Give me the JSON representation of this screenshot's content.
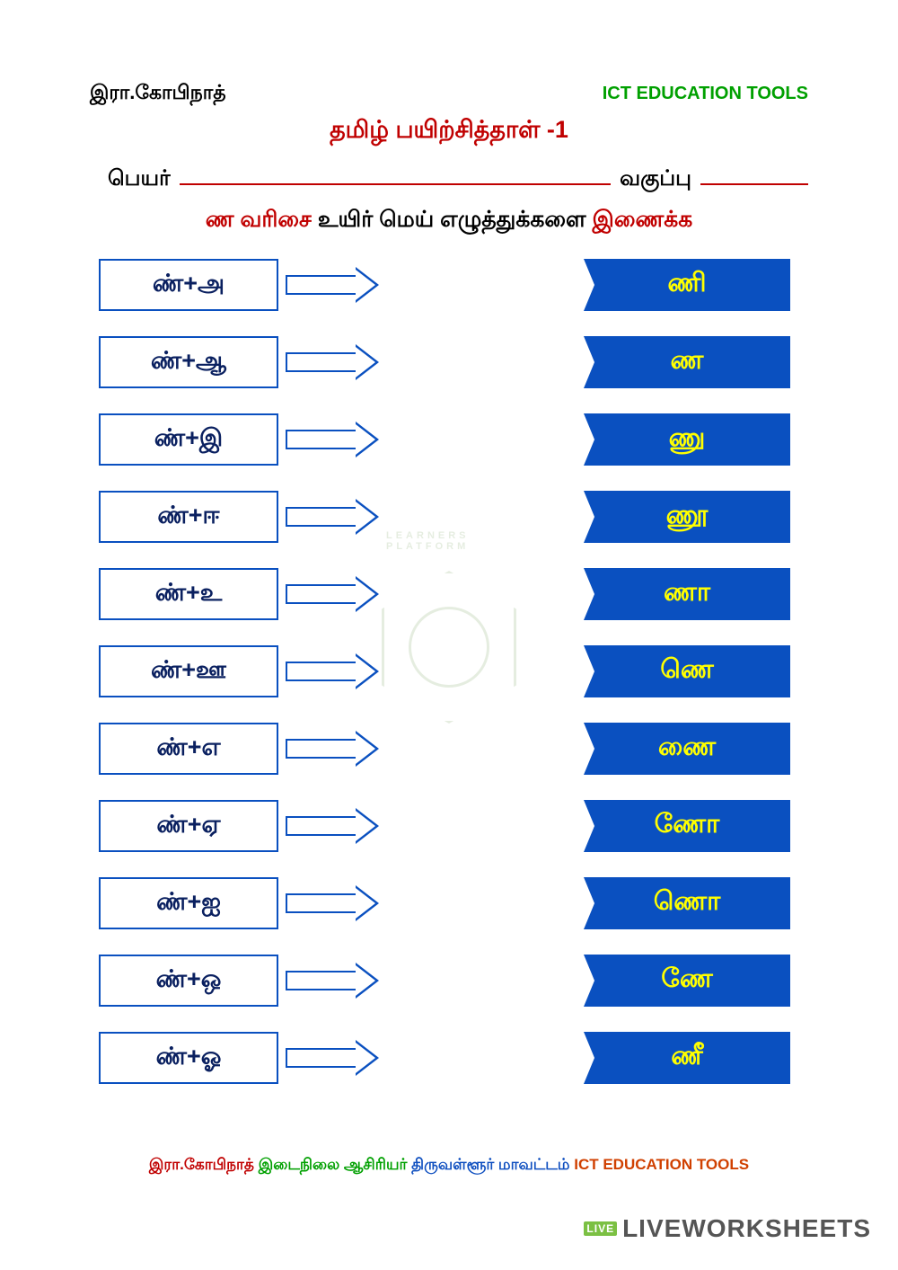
{
  "header": {
    "author": "இரா.கோபிநாத்",
    "brand": "ICT EDUCATION TOOLS"
  },
  "title": "தமிழ் பயிற்சித்தாள் -1",
  "form": {
    "name_label": "பெயர்",
    "class_label": "வகுப்பு"
  },
  "instruction": {
    "red1": "ண வரிசை",
    "black": "உயிர் மெய் எழுத்துக்களை",
    "red2": "இணைக்க"
  },
  "rows": [
    {
      "left": "ண்+அ",
      "right": "ணி"
    },
    {
      "left": "ண்+ஆ",
      "right": "ண"
    },
    {
      "left": "ண்+இ",
      "right": "ணு"
    },
    {
      "left": "ண்+ஈ",
      "right": "ணூ"
    },
    {
      "left": "ண்+உ",
      "right": "ணா"
    },
    {
      "left": "ண்+ஊ",
      "right": "ணெ"
    },
    {
      "left": "ண்+எ",
      "right": "ணை"
    },
    {
      "left": "ண்+ஏ",
      "right": "ணோ"
    },
    {
      "left": "ண்+ஐ",
      "right": "ணொ"
    },
    {
      "left": "ண்+ஒ",
      "right": "ணே"
    },
    {
      "left": "ண்+ஓ",
      "right": "ணீ"
    }
  ],
  "footer": {
    "author": "இரா.கோபிநாத்",
    "role": "இடைநிலை ஆசிரியர்",
    "district": "திருவள்ளூர் மாவட்டம்",
    "brand": "ICT EDUCATION TOOLS"
  },
  "watermark": "LIVEWORKSHEETS",
  "watermark_badge": "LIVE",
  "center_wm": "LEARNERS PLATFORM",
  "colors": {
    "primary_blue": "#0a50c0",
    "dark_blue": "#0a2060",
    "red": "#c00000",
    "green": "#00a000",
    "yellow": "#ffff00"
  }
}
